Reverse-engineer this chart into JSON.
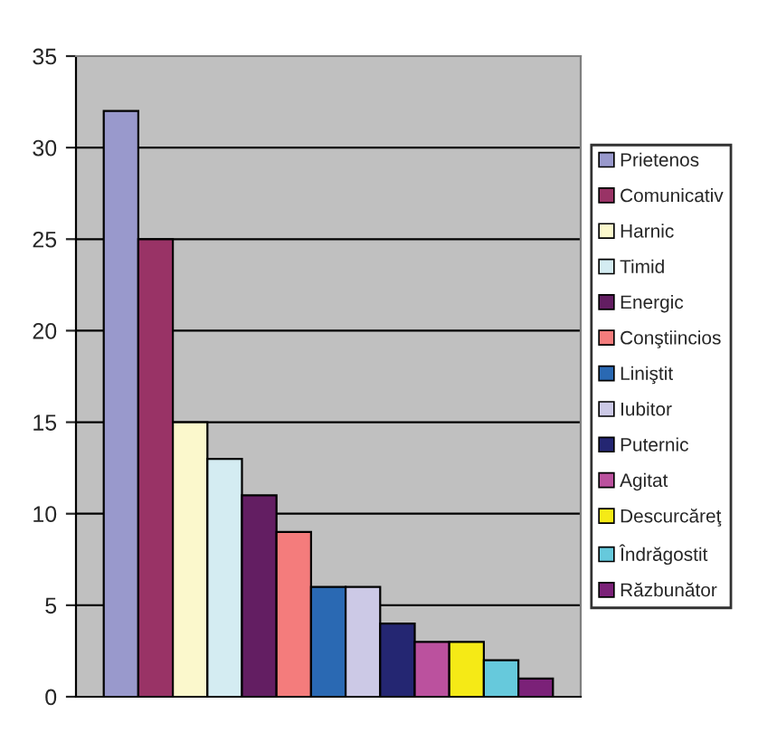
{
  "chart_data": {
    "type": "bar",
    "categories": [
      null
    ],
    "series": [
      {
        "name": "Prietenos",
        "color": "#9999cc",
        "values": [
          32
        ]
      },
      {
        "name": "Comunicativ",
        "color": "#993366",
        "values": [
          25
        ]
      },
      {
        "name": "Harnic",
        "color": "#fbf8cc",
        "values": [
          15
        ]
      },
      {
        "name": "Timid",
        "color": "#d4ecf2",
        "values": [
          13
        ]
      },
      {
        "name": "Energic",
        "color": "#631e62",
        "values": [
          11
        ]
      },
      {
        "name": "Conştiincios",
        "color": "#f47c7c",
        "values": [
          9
        ]
      },
      {
        "name": "Liniştit",
        "color": "#2a69b3",
        "values": [
          6
        ]
      },
      {
        "name": "Iubitor",
        "color": "#ccc9e6",
        "values": [
          6
        ]
      },
      {
        "name": "Puternic",
        "color": "#242672",
        "values": [
          4
        ]
      },
      {
        "name": "Agitat",
        "color": "#bb519e",
        "values": [
          3
        ]
      },
      {
        "name": "Descurcăreţ",
        "color": "#f5ea16",
        "values": [
          3
        ]
      },
      {
        "name": "Îndrăgostit",
        "color": "#66c9dc",
        "values": [
          2
        ]
      },
      {
        "name": "Răzbunător",
        "color": "#7b2178",
        "values": [
          1
        ]
      }
    ],
    "ylim": [
      0,
      35
    ],
    "yticks": [
      0,
      5,
      10,
      15,
      20,
      25,
      30,
      35
    ],
    "grid": "y",
    "legend": "right"
  }
}
